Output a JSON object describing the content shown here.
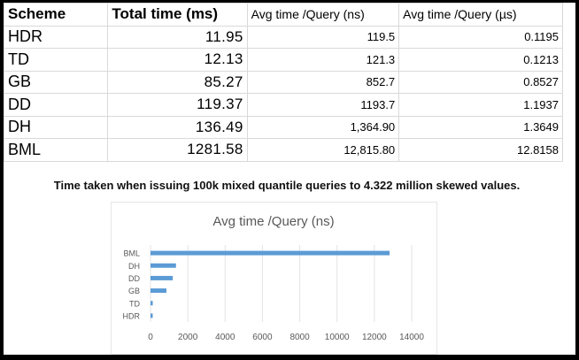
{
  "table": {
    "headers": [
      "Scheme",
      "Total time (ms)",
      "Avg time /Query (ns)",
      "Avg time /Query  (µs)"
    ],
    "rows": [
      {
        "scheme": "HDR",
        "total": "11.95",
        "ns": "119.5",
        "us": "0.1195"
      },
      {
        "scheme": "TD",
        "total": "12.13",
        "ns": "121.3",
        "us": "0.1213"
      },
      {
        "scheme": "GB",
        "total": "85.27",
        "ns": "852.7",
        "us": "0.8527"
      },
      {
        "scheme": "DD",
        "total": "119.37",
        "ns": "1193.7",
        "us": "1.1937"
      },
      {
        "scheme": "DH",
        "total": "136.49",
        "ns": "1,364.90",
        "us": "1.3649"
      },
      {
        "scheme": "BML",
        "total": "1281.58",
        "ns": "12,815.80",
        "us": "12.8158"
      }
    ]
  },
  "caption": "Time taken when issuing 100k mixed quantile queries to 4.322 million skewed values.",
  "chart_data": {
    "type": "bar",
    "orientation": "horizontal",
    "title": "Avg time /Query (ns)",
    "categories": [
      "BML",
      "DH",
      "DD",
      "GB",
      "TD",
      "HDR"
    ],
    "values": [
      12815.8,
      1364.9,
      1193.7,
      852.7,
      121.3,
      119.5
    ],
    "xlim": [
      0,
      14000
    ],
    "xticks": [
      "0",
      "2000",
      "4000",
      "6000",
      "8000",
      "10000",
      "12000",
      "14000"
    ],
    "xlabel": "",
    "ylabel": "",
    "grid": true,
    "bar_color": "#5b9bd5"
  }
}
